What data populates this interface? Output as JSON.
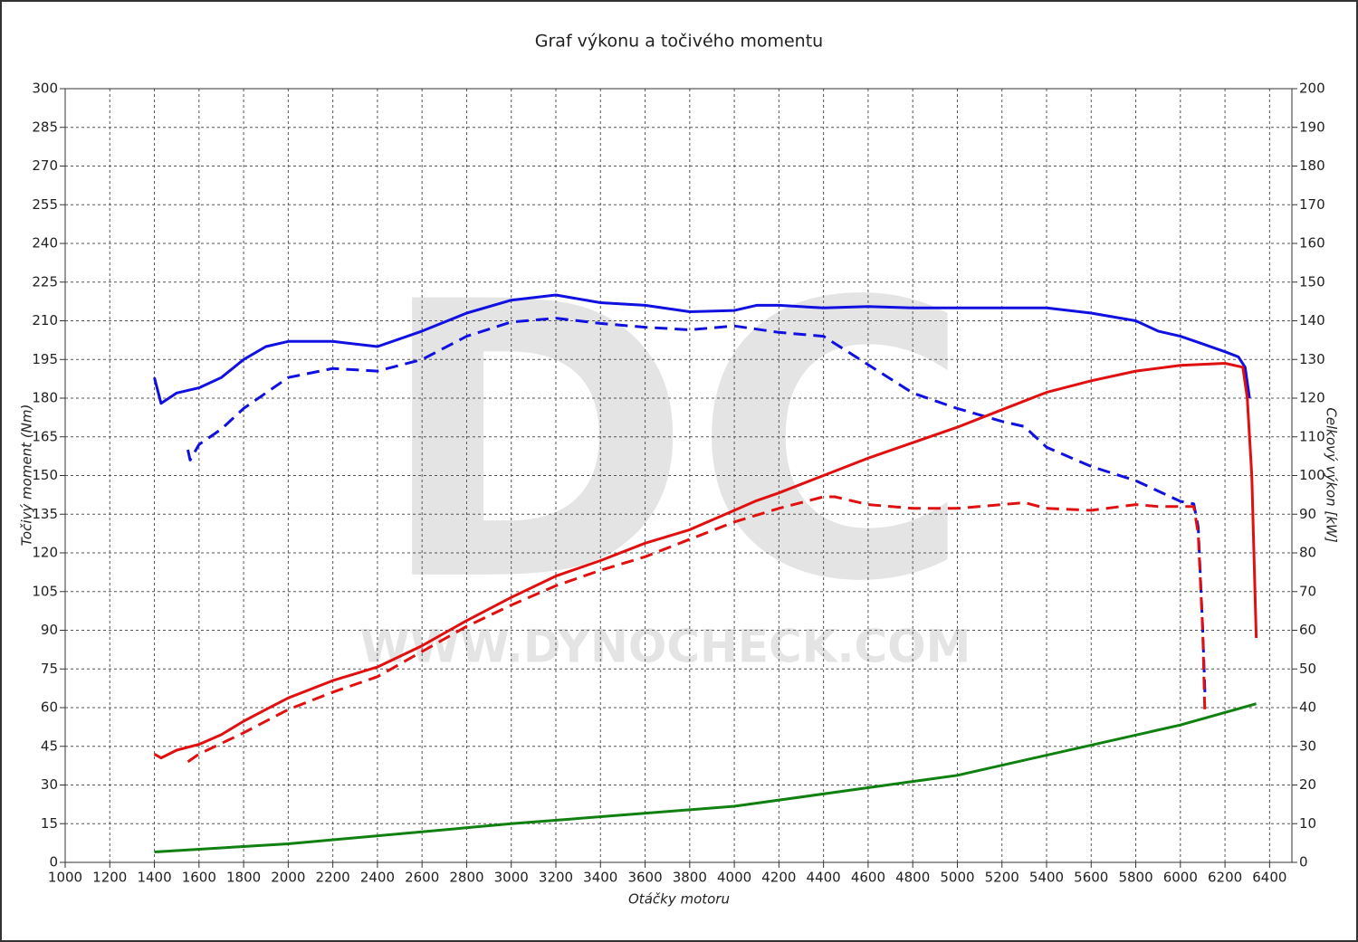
{
  "chart_data": {
    "type": "line",
    "title": "Graf výkonu a točivého momentu",
    "x_label": "Otáčky motoru",
    "y_label": "Točivý moment (Nm)",
    "y2_label": "Celkový výkon [kW]",
    "watermark": "DC",
    "watermark_url": "WWW.DYNOCHECK.COM",
    "grid": true,
    "xlim": [
      1000,
      6500
    ],
    "xticks": [
      1000,
      1200,
      1400,
      1600,
      1800,
      2000,
      2200,
      2400,
      2600,
      2800,
      3000,
      3200,
      3400,
      3600,
      3800,
      4000,
      4200,
      4400,
      4600,
      4800,
      5000,
      5200,
      5400,
      5600,
      5800,
      6000,
      6200,
      6400
    ],
    "ylim": [
      0,
      300
    ],
    "yticks": [
      0,
      15,
      30,
      45,
      60,
      75,
      90,
      105,
      120,
      135,
      150,
      165,
      180,
      195,
      210,
      225,
      240,
      255,
      270,
      285,
      300
    ],
    "y2lim": [
      0,
      200
    ],
    "y2ticks": [
      0,
      10,
      20,
      30,
      40,
      50,
      60,
      70,
      80,
      90,
      100,
      110,
      120,
      130,
      140,
      150,
      160,
      170,
      180,
      190,
      200
    ],
    "series": [
      {
        "color": "#1010e0",
        "dashed": false,
        "axis": "y",
        "x": [
          1400,
          1430,
          1500,
          1600,
          1700,
          1800,
          1900,
          2000,
          2200,
          2400,
          2600,
          2800,
          3000,
          3200,
          3400,
          3600,
          3800,
          4000,
          4100,
          4200,
          4400,
          4600,
          4800,
          5000,
          5200,
          5400,
          5600,
          5800,
          5900,
          6000,
          6100,
          6200,
          6260,
          6290,
          6310
        ],
        "values": [
          188,
          178,
          182,
          184,
          188,
          195,
          200,
          202,
          202,
          200,
          206,
          213,
          218,
          220,
          217,
          216,
          213.5,
          214,
          216,
          216,
          215,
          215.5,
          215,
          215,
          215,
          215,
          213,
          210,
          206,
          204,
          201,
          198,
          196,
          192,
          180
        ]
      },
      {
        "color": "#1010e0",
        "dashed": true,
        "axis": "y",
        "x": [
          1550,
          1560,
          1600,
          1700,
          1800,
          1900,
          2000,
          2200,
          2400,
          2600,
          2800,
          3000,
          3200,
          3400,
          3600,
          3800,
          4000,
          4200,
          4400,
          4600,
          4800,
          5000,
          5200,
          5300,
          5400,
          5600,
          5800,
          5900,
          6000,
          6060,
          6080,
          6100,
          6110
        ],
        "values": [
          160,
          156,
          162,
          168,
          176,
          182,
          188,
          191.5,
          190.5,
          195,
          204,
          209.5,
          211,
          209,
          207.5,
          206.5,
          208,
          205.5,
          204,
          193,
          182,
          176,
          171,
          169,
          161,
          153.5,
          148,
          144,
          140,
          139,
          130,
          90,
          66
        ]
      },
      {
        "color": "#e01010",
        "dashed": false,
        "axis": "y2",
        "x": [
          1400,
          1430,
          1500,
          1600,
          1700,
          1800,
          1900,
          2000,
          2200,
          2400,
          2600,
          2800,
          3000,
          3200,
          3400,
          3600,
          3800,
          4000,
          4100,
          4200,
          4400,
          4600,
          4800,
          5000,
          5200,
          5400,
          5600,
          5800,
          6000,
          6200,
          6280,
          6300,
          6320,
          6340
        ],
        "values": [
          28,
          27,
          29,
          30.5,
          33,
          36.5,
          39.5,
          42.5,
          47,
          50.5,
          56,
          62.5,
          68.5,
          74,
          78,
          82.5,
          86,
          91,
          93.5,
          95.5,
          100,
          104.5,
          108.5,
          112.5,
          117,
          121.5,
          124.5,
          127,
          128.5,
          129,
          128,
          120,
          100,
          58
        ]
      },
      {
        "color": "#e01010",
        "dashed": true,
        "axis": "y2",
        "x": [
          1550,
          1600,
          1800,
          2000,
          2200,
          2400,
          2600,
          2800,
          3000,
          3200,
          3400,
          3600,
          3800,
          4000,
          4200,
          4400,
          4450,
          4600,
          4800,
          5000,
          5200,
          5300,
          5400,
          5600,
          5800,
          5900,
          6000,
          6060,
          6080,
          6100,
          6110
        ],
        "values": [
          26,
          28,
          33.5,
          39.5,
          44,
          48,
          54.5,
          61,
          66.5,
          71.5,
          75.5,
          79,
          83.5,
          88,
          91.5,
          94.5,
          94.5,
          92.5,
          91.5,
          91.5,
          92.5,
          93,
          91.5,
          91,
          92.5,
          92,
          92,
          92,
          85,
          60,
          38
        ]
      },
      {
        "color": "#108010",
        "dashed": false,
        "axis": "y2",
        "x": [
          1400,
          2000,
          3000,
          4000,
          5000,
          6000,
          6340
        ],
        "values": [
          2.7,
          4.8,
          10,
          14.5,
          22.5,
          35.5,
          41
        ]
      }
    ]
  }
}
